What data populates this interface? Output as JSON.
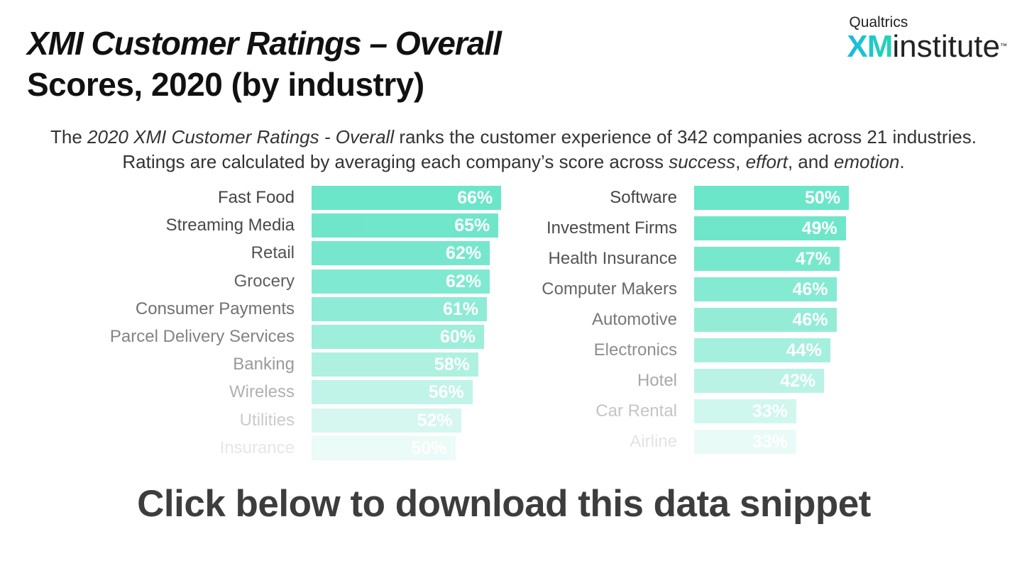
{
  "header": {
    "title_line1": "XMI Customer Ratings – Overall",
    "title_line2": "Scores, 2020 (by industry)"
  },
  "logo": {
    "brand": "Qualtrics",
    "xm": "XM",
    "institute": "institute",
    "tm": "™"
  },
  "subtitle": {
    "p1": "The ",
    "italic_report": "2020 XMI Customer Ratings - Overall",
    "p2": " ranks the customer experience of 342 companies across 21 industries. Ratings are calculated by averaging each company’s score across ",
    "italic_success": "success",
    "p3": ", ",
    "italic_effort": "effort",
    "p4": ", and ",
    "italic_emotion": "emotion",
    "p5": "."
  },
  "colors": {
    "bar": "#6be6c9",
    "title": "#111111",
    "cta": "#3d3d3d"
  },
  "chart_data": [
    {
      "type": "bar",
      "orientation": "horizontal",
      "title": "XMI Customer Ratings – Overall Scores, 2020 (by industry)",
      "categories": [
        "Fast Food",
        "Streaming Media",
        "Retail",
        "Grocery",
        "Consumer Payments",
        "Parcel Delivery Services",
        "Banking",
        "Wireless",
        "Utilities",
        "Insurance"
      ],
      "values": [
        66,
        65,
        62,
        62,
        61,
        60,
        58,
        56,
        52,
        50
      ],
      "value_labels": [
        "66%",
        "65%",
        "62%",
        "62%",
        "61%",
        "60%",
        "58%",
        "56%",
        "52%",
        "50%"
      ],
      "unit": "%"
    },
    {
      "type": "bar",
      "orientation": "horizontal",
      "title": "XMI Customer Ratings – Overall Scores, 2020 (by industry)",
      "categories": [
        "Software",
        "Investment Firms",
        "Health Insurance",
        "Computer Makers",
        "Automotive",
        "Electronics",
        "Hotel",
        "Car Rental",
        "Airline"
      ],
      "values": [
        50,
        49,
        47,
        46,
        46,
        44,
        42,
        33,
        33
      ],
      "value_labels": [
        "50%",
        "49%",
        "47%",
        "46%",
        "46%",
        "44%",
        "42%",
        "33%",
        "33%"
      ],
      "unit": "%"
    }
  ],
  "cta": {
    "text": "Click below to download this data snippet"
  }
}
